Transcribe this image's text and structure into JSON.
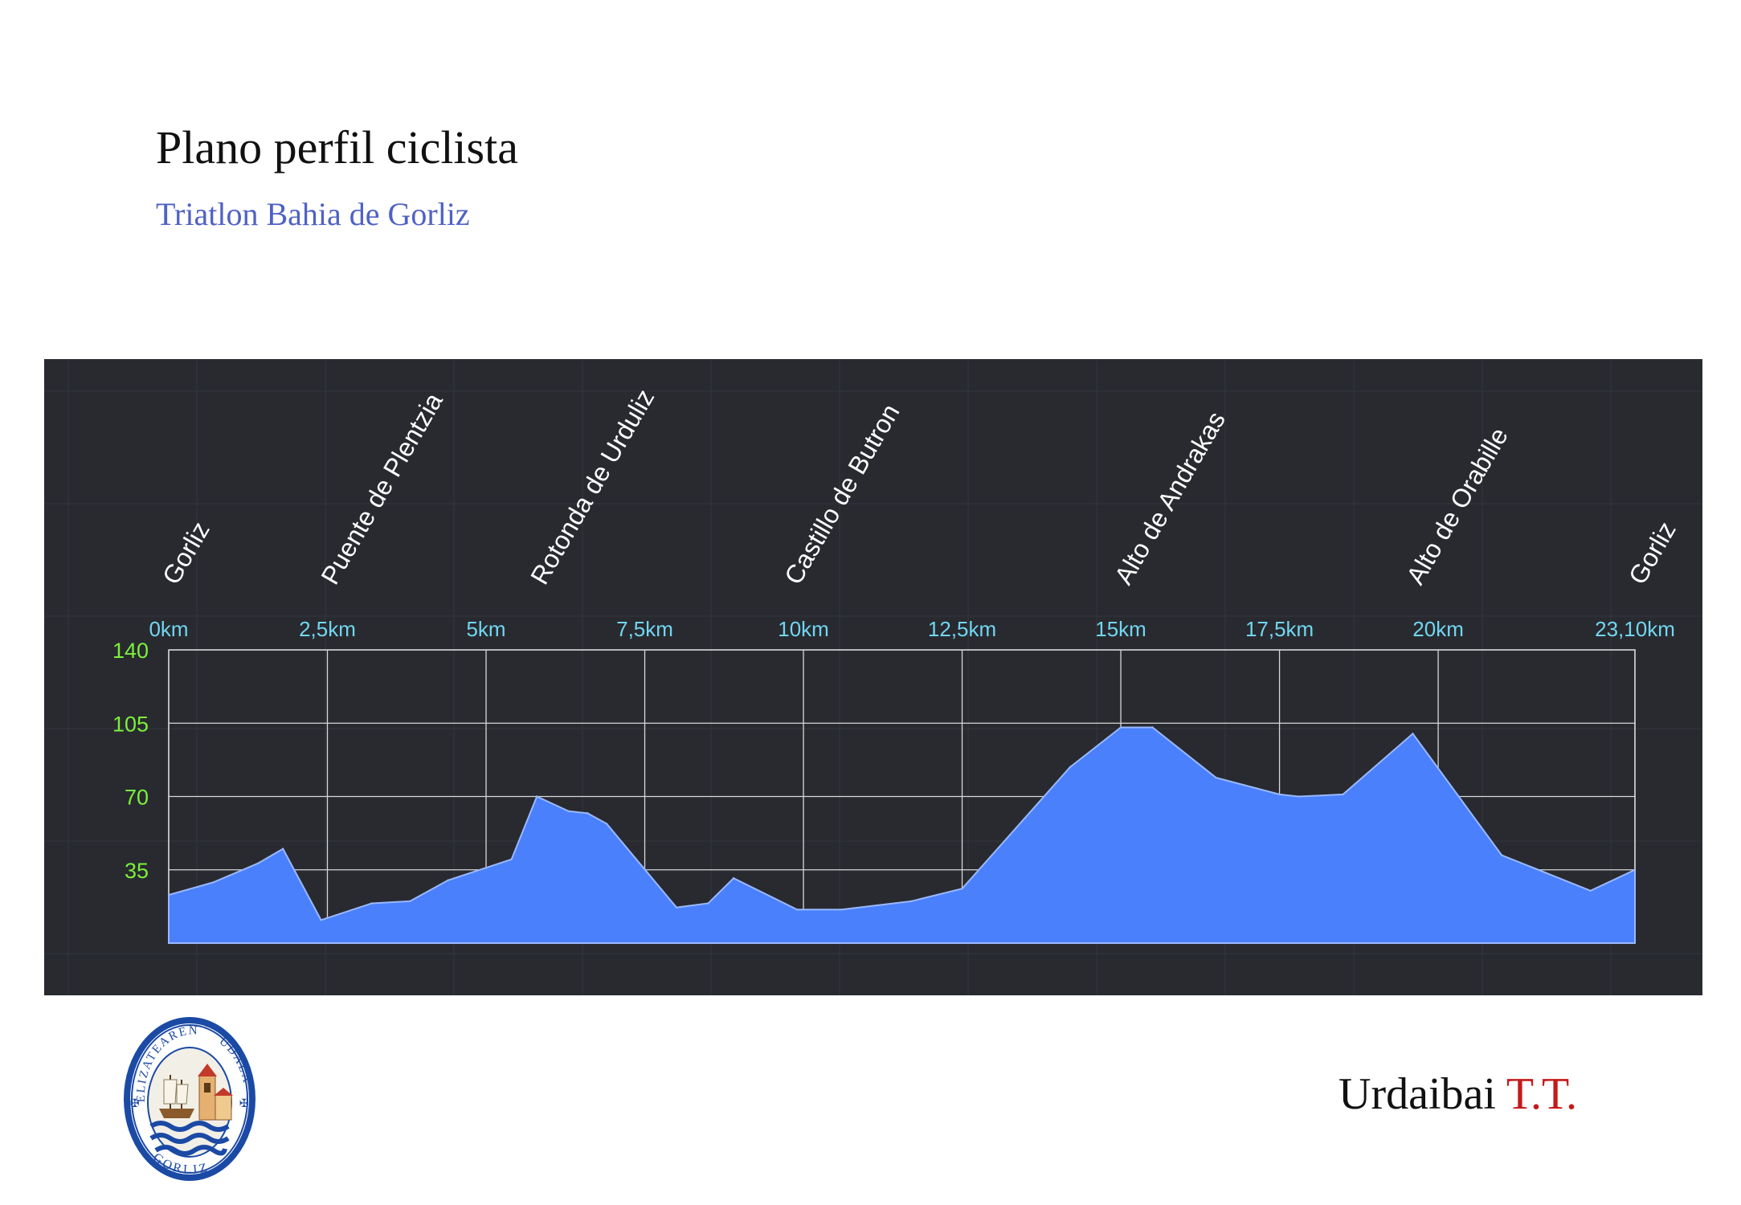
{
  "header": {
    "title": "Plano perfil ciclista",
    "subtitle": "Triatlon Bahia de Gorliz"
  },
  "footer": {
    "brand_main": "Urdaibai",
    "brand_accent": "T.T."
  },
  "seal": {
    "top_text": "ELIZATEAREN",
    "right_text": "UDALA",
    "bottom_text": "GORLIZ"
  },
  "colors": {
    "panel_bg": "#282a30",
    "area_fill": "#4a80fb",
    "area_stroke": "#9ab8ff",
    "grid": "#d8d8d8",
    "y_tick": "#7cf03a",
    "x_tick": "#72d6f0",
    "place_label": "#ffffff",
    "accent_red": "#c41a1a",
    "subtitle_blue": "#4f61c6"
  },
  "chart_data": {
    "type": "area",
    "x_unit": "km",
    "y_unit": "m",
    "ylim": [
      0,
      140
    ],
    "xlim": [
      0,
      23.1
    ],
    "grid": true,
    "y_ticks": [
      {
        "value": 35,
        "label": "35"
      },
      {
        "value": 70,
        "label": "70"
      },
      {
        "value": 105,
        "label": "105"
      },
      {
        "value": 140,
        "label": "140"
      }
    ],
    "x_ticks": [
      {
        "value": 0,
        "label": "0km"
      },
      {
        "value": 2.5,
        "label": "2,5km"
      },
      {
        "value": 5,
        "label": "5km"
      },
      {
        "value": 7.5,
        "label": "7,5km"
      },
      {
        "value": 10,
        "label": "10km"
      },
      {
        "value": 12.5,
        "label": "12,5km"
      },
      {
        "value": 15,
        "label": "15km"
      },
      {
        "value": 17.5,
        "label": "17,5km"
      },
      {
        "value": 20,
        "label": "20km"
      },
      {
        "value": 23.1,
        "label": "23,10km"
      }
    ],
    "place_labels": [
      {
        "km": 0,
        "label": "Gorliz"
      },
      {
        "km": 2.5,
        "label": "Puente de Plentzia"
      },
      {
        "km": 5.8,
        "label": "Rotonda de Urduliz"
      },
      {
        "km": 9.8,
        "label": "Castillo de Butron"
      },
      {
        "km": 15.0,
        "label": "Alto de Andrakas"
      },
      {
        "km": 19.6,
        "label": "Alto de Orabille"
      },
      {
        "km": 23.1,
        "label": "Gorliz"
      }
    ],
    "series": [
      {
        "x": [
          0,
          0.7,
          1.4,
          1.8,
          2.4,
          3.2,
          3.8,
          4.4,
          5.0,
          5.4,
          5.8,
          6.3,
          6.6,
          6.9,
          8.0,
          8.5,
          8.9,
          9.9,
          10.6,
          11.7,
          12.5,
          14.2,
          15.0,
          15.5,
          16.5,
          17.5,
          17.8,
          18.5,
          19.6,
          21.0,
          22.4,
          23.1
        ],
        "y": [
          23,
          29,
          38,
          45,
          11,
          19,
          20,
          30,
          36,
          40,
          70,
          63,
          62,
          57,
          17,
          19,
          31,
          16,
          16,
          20,
          26,
          84,
          103,
          103,
          79,
          71,
          70,
          71,
          100,
          42,
          25,
          35
        ]
      }
    ]
  }
}
